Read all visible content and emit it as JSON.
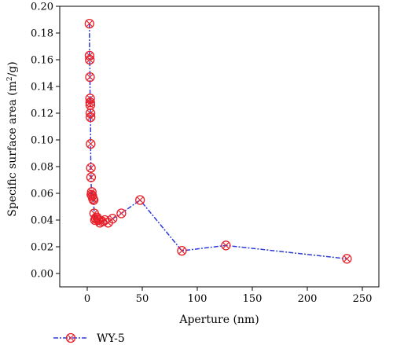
{
  "chart_data": {
    "type": "line",
    "xlabel": "Aperture (nm)",
    "ylabel_main": "Specific surface area (m",
    "ylabel_sup": "2",
    "ylabel_tail": "/g)",
    "xlim": [
      -25,
      265
    ],
    "ylim": [
      -0.01,
      0.2
    ],
    "x_ticks": [
      0,
      50,
      100,
      150,
      200,
      250
    ],
    "x_tick_labels": [
      "0",
      "50",
      "100",
      "150",
      "200",
      "250"
    ],
    "y_ticks": [
      0.0,
      0.02,
      0.04,
      0.06,
      0.08,
      0.1,
      0.12,
      0.14,
      0.16,
      0.18,
      0.2
    ],
    "y_tick_labels": [
      "0.00",
      "0.02",
      "0.04",
      "0.06",
      "0.08",
      "0.10",
      "0.12",
      "0.14",
      "0.16",
      "0.18",
      "0.20"
    ],
    "grid": false,
    "legend_position": "bottom-left",
    "series": [
      {
        "name": "WY-5",
        "line_color": "#2e3bd6",
        "marker_color": "#e8202a",
        "marker": "circle-x",
        "x": [
          2.0,
          2.1,
          2.3,
          2.5,
          2.6,
          2.7,
          2.8,
          2.9,
          3.0,
          3.1,
          3.3,
          3.5,
          3.8,
          4.1,
          4.6,
          5.2,
          5.8,
          6.3,
          7.0,
          7.8,
          8.8,
          10.0,
          11.5,
          13.5,
          16.0,
          19.0,
          23.0,
          31.0,
          48.0,
          86.0,
          126.0,
          236.0
        ],
        "y": [
          0.187,
          0.163,
          0.16,
          0.147,
          0.131,
          0.128,
          0.126,
          0.12,
          0.117,
          0.097,
          0.079,
          0.072,
          0.059,
          0.061,
          0.058,
          0.056,
          0.055,
          0.045,
          0.04,
          0.041,
          0.042,
          0.04,
          0.038,
          0.039,
          0.04,
          0.038,
          0.041,
          0.045,
          0.055,
          0.017,
          0.021,
          0.011
        ]
      }
    ]
  }
}
